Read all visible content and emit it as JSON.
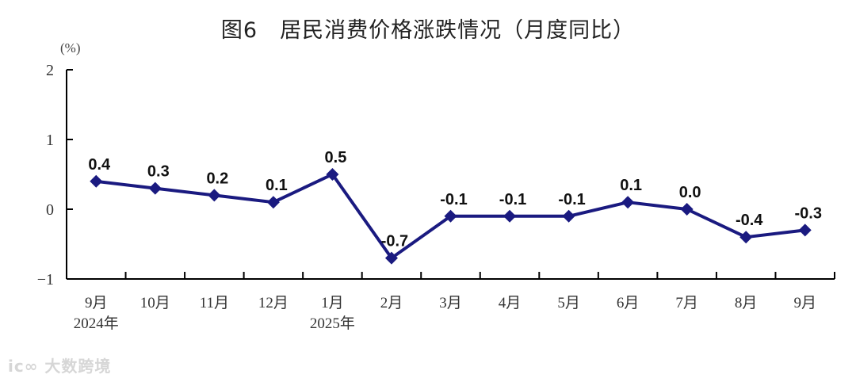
{
  "chart_data": {
    "type": "line",
    "title": "图6　居民消费价格涨跌情况（月度同比）",
    "ylabel": "(%)",
    "xlabel": "",
    "ylim": [
      -1,
      2
    ],
    "yticks": [
      2,
      1,
      0,
      -1
    ],
    "ytick_labels": [
      "2",
      "1",
      "0",
      "−1"
    ],
    "grid": false,
    "legend": null,
    "categories": [
      "9月",
      "10月",
      "11月",
      "12月",
      "1月",
      "2月",
      "3月",
      "4月",
      "5月",
      "6月",
      "7月",
      "8月",
      "9月"
    ],
    "category_sublabels": [
      "2024年",
      "",
      "",
      "",
      "2025年",
      "",
      "",
      "",
      "",
      "",
      "",
      "",
      ""
    ],
    "series": [
      {
        "name": "居民消费价格月度同比",
        "color": "#1a1a80",
        "marker": "diamond",
        "values": [
          0.4,
          0.3,
          0.2,
          0.1,
          0.5,
          -0.7,
          -0.1,
          -0.1,
          -0.1,
          0.1,
          0.0,
          -0.4,
          -0.3
        ],
        "data_labels": [
          "0.4",
          "0.3",
          "0.2",
          "0.1",
          "0.5",
          "-0.7",
          "-0.1",
          "-0.1",
          "-0.1",
          "0.1",
          "0.0",
          "-0.4",
          "-0.3"
        ]
      }
    ]
  },
  "title": "图6　居民消费价格涨跌情况（月度同比）",
  "unit_label": "(%)",
  "watermark": "大数跨境",
  "watermark_logo": "ic∞"
}
